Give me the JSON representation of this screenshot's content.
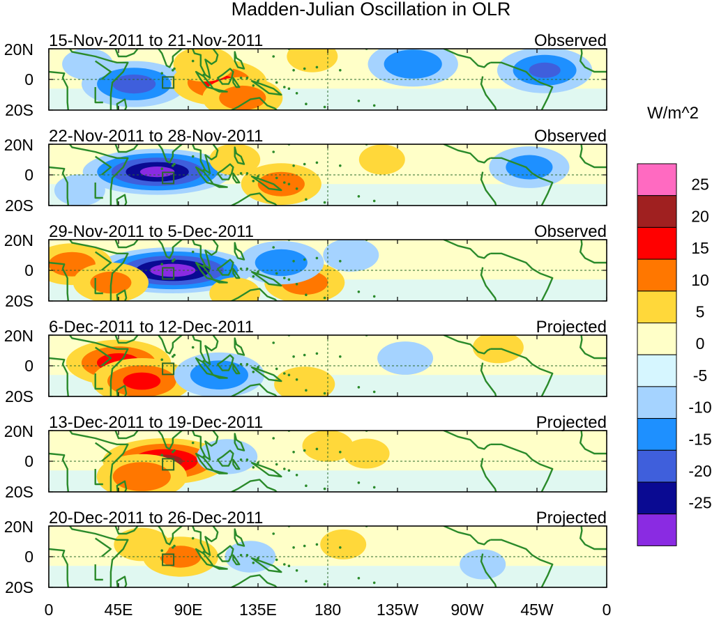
{
  "chart_data": {
    "type": "heatmap",
    "title": "Madden-Julian Oscillation in OLR",
    "units": "W/m^2",
    "x_ticks": [
      "0",
      "45E",
      "90E",
      "135E",
      "180",
      "135W",
      "90W",
      "45W",
      "0"
    ],
    "y_ticks": [
      "20N",
      "0",
      "20S"
    ],
    "xlim": [
      0,
      360
    ],
    "ylim": [
      -20,
      20
    ],
    "panels": [
      {
        "date_range": "15-Nov-2011 to 21-Nov-2011",
        "status": "Observed",
        "anomalies": [
          {
            "lon": 55,
            "lat": -3,
            "value": -17
          },
          {
            "lon": 110,
            "lat": -2,
            "value": 15
          },
          {
            "lon": 125,
            "lat": -12,
            "value": 12
          },
          {
            "lon": 100,
            "lat": 10,
            "value": 8
          },
          {
            "lon": 170,
            "lat": 15,
            "value": 6
          },
          {
            "lon": 235,
            "lat": 10,
            "value": -14
          },
          {
            "lon": 320,
            "lat": 6,
            "value": -15
          },
          {
            "lon": 330,
            "lat": -12,
            "value": 4
          },
          {
            "lon": 25,
            "lat": 10,
            "value": -6
          }
        ]
      },
      {
        "date_range": "22-Nov-2011 to 28-Nov-2011",
        "status": "Observed",
        "anomalies": [
          {
            "lon": 70,
            "lat": 2,
            "value": -26
          },
          {
            "lon": 150,
            "lat": -6,
            "value": 12
          },
          {
            "lon": 120,
            "lat": 10,
            "value": 6
          },
          {
            "lon": 215,
            "lat": 10,
            "value": 5
          },
          {
            "lon": 310,
            "lat": 5,
            "value": -12
          },
          {
            "lon": 20,
            "lat": -10,
            "value": -6
          },
          {
            "lon": 255,
            "lat": -15,
            "value": 3
          }
        ]
      },
      {
        "date_range": "29-Nov-2011 to 5-Dec-2011",
        "status": "Observed",
        "anomalies": [
          {
            "lon": 80,
            "lat": 0,
            "value": -28
          },
          {
            "lon": 15,
            "lat": 4,
            "value": 12
          },
          {
            "lon": 40,
            "lat": -8,
            "value": 11
          },
          {
            "lon": 165,
            "lat": -8,
            "value": 12
          },
          {
            "lon": 150,
            "lat": 5,
            "value": -13
          },
          {
            "lon": 195,
            "lat": 10,
            "value": -7
          },
          {
            "lon": 120,
            "lat": -15,
            "value": 6
          },
          {
            "lon": 330,
            "lat": 3,
            "value": 3
          }
        ]
      },
      {
        "date_range": "6-Dec-2011 to 12-Dec-2011",
        "status": "Projected",
        "anomalies": [
          {
            "lon": 45,
            "lat": 2,
            "value": 17
          },
          {
            "lon": 60,
            "lat": -10,
            "value": 16
          },
          {
            "lon": 110,
            "lat": -6,
            "value": -14
          },
          {
            "lon": 165,
            "lat": -12,
            "value": 8
          },
          {
            "lon": 145,
            "lat": 10,
            "value": 4
          },
          {
            "lon": 230,
            "lat": 5,
            "value": -7
          },
          {
            "lon": 290,
            "lat": 12,
            "value": 6
          }
        ]
      },
      {
        "date_range": "13-Dec-2011 to 19-Dec-2011",
        "status": "Projected",
        "anomalies": [
          {
            "lon": 75,
            "lat": 0,
            "value": 21
          },
          {
            "lon": 60,
            "lat": -10,
            "value": 14
          },
          {
            "lon": 115,
            "lat": 3,
            "value": -8
          },
          {
            "lon": 180,
            "lat": 10,
            "value": 6
          },
          {
            "lon": 205,
            "lat": 5,
            "value": 5
          },
          {
            "lon": 155,
            "lat": -12,
            "value": 4
          }
        ]
      },
      {
        "date_range": "20-Dec-2011 to 26-Dec-2011",
        "status": "Projected",
        "anomalies": [
          {
            "lon": 85,
            "lat": 0,
            "value": 11
          },
          {
            "lon": 60,
            "lat": 8,
            "value": 7
          },
          {
            "lon": 130,
            "lat": 0,
            "value": -6
          },
          {
            "lon": 190,
            "lat": 8,
            "value": 5
          },
          {
            "lon": 280,
            "lat": -5,
            "value": -5
          }
        ]
      }
    ],
    "colorbar": {
      "levels": [
        25,
        20,
        15,
        10,
        5,
        0,
        -5,
        -10,
        -15,
        -20,
        -25
      ],
      "level_labels": [
        "25",
        "20",
        "15",
        "10",
        "5",
        "0",
        "-5",
        "-10",
        "-15",
        "-20",
        "-25"
      ],
      "colors": [
        "#ff6ac1",
        "#a02020",
        "#ff0000",
        "#ff7700",
        "#ffd83a",
        "#ffffc8",
        "#d6f6ff",
        "#a5d3ff",
        "#1e90ff",
        "#3f5fdc",
        "#0a0a92",
        "#8a2be2"
      ]
    },
    "box_marker": {
      "lon": 77,
      "lat": -2
    }
  },
  "colors": {
    "coast": "#2a8a2a",
    "background": "#ffffc8"
  }
}
